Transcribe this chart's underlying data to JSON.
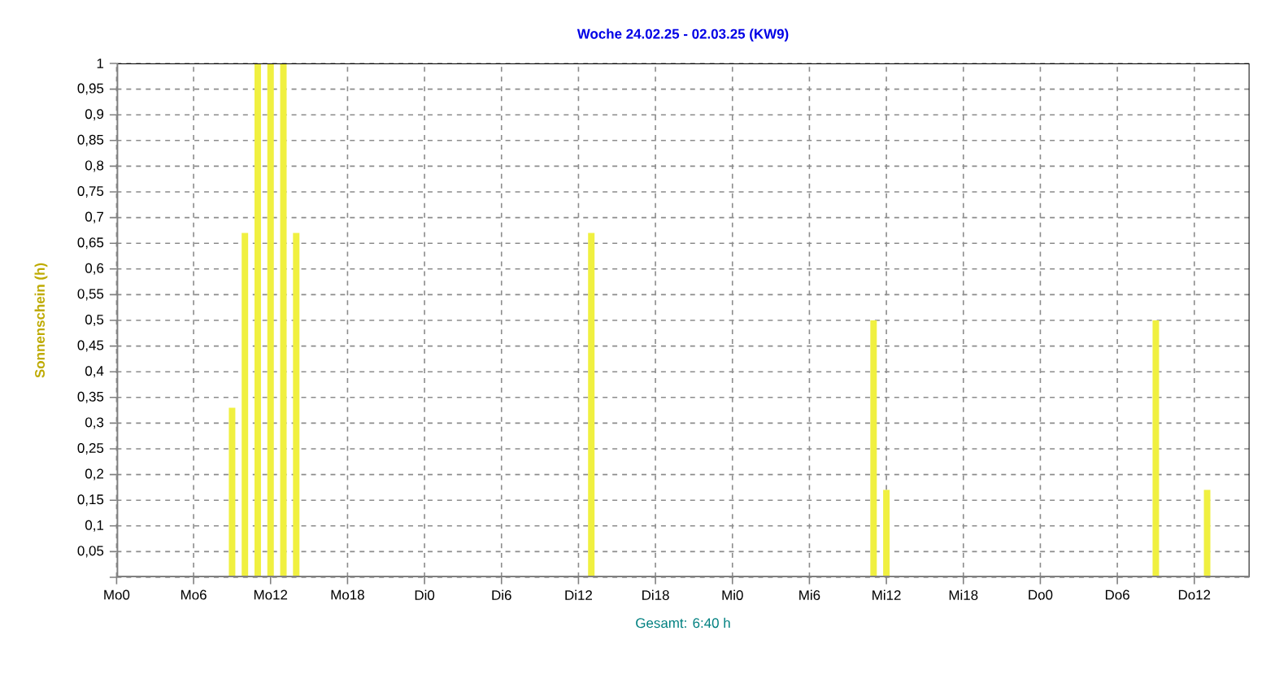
{
  "chart_data": {
    "type": "bar",
    "title": "Woche 24.02.25 - 02.03.25 (KW9)",
    "ylabel": "Sonnenschein  (h)",
    "annotations": [
      "Gesamt: 6:40 h"
    ],
    "categories": [
      "Mo0",
      null,
      null,
      null,
      null,
      null,
      "Mo6",
      null,
      null,
      null,
      null,
      null,
      "Mo12",
      null,
      null,
      null,
      null,
      null,
      "Mo18",
      null,
      null,
      null,
      null,
      null,
      "Di0",
      null,
      null,
      null,
      null,
      null,
      "Di6",
      null,
      null,
      null,
      null,
      null,
      "Di12",
      null,
      null,
      null,
      null,
      null,
      "Di18",
      null,
      null,
      null,
      null,
      null,
      "Mi0",
      null,
      null,
      null,
      null,
      null,
      "Mi6",
      null,
      null,
      null,
      null,
      null,
      "Mi12",
      null,
      null,
      null,
      null,
      null,
      "Mi18",
      null,
      null,
      null,
      null,
      null,
      "Do0",
      null,
      null,
      null,
      null,
      null,
      "Do6",
      null,
      null,
      null,
      null,
      null,
      "Do12",
      null,
      null,
      null,
      null
    ],
    "values": [
      null,
      null,
      null,
      null,
      null,
      null,
      null,
      null,
      null,
      0.33,
      0.67,
      1,
      1,
      1,
      0.67,
      null,
      null,
      null,
      null,
      null,
      null,
      null,
      null,
      null,
      null,
      null,
      null,
      null,
      null,
      null,
      null,
      null,
      null,
      null,
      null,
      null,
      null,
      0.67,
      null,
      null,
      null,
      null,
      null,
      null,
      null,
      null,
      null,
      null,
      null,
      null,
      null,
      null,
      null,
      null,
      null,
      null,
      null,
      null,
      null,
      0.5,
      0.17,
      null,
      null,
      null,
      null,
      null,
      null,
      null,
      null,
      null,
      null,
      null,
      null,
      null,
      null,
      null,
      null,
      null,
      null,
      null,
      null,
      0.5,
      null,
      null,
      null,
      0.17,
      null,
      null,
      null
    ],
    "color": "#f0f040",
    "ylim": [
      0,
      1
    ],
    "yticks": [
      {
        "value": 0,
        "label": null
      },
      {
        "value": 0.05,
        "label": "0,05"
      },
      {
        "value": 0.1,
        "label": "0,1"
      },
      {
        "value": 0.15,
        "label": "0,15"
      },
      {
        "value": 0.2,
        "label": "0,2"
      },
      {
        "value": 0.25,
        "label": "0,25"
      },
      {
        "value": 0.3,
        "label": "0,3"
      },
      {
        "value": 0.35,
        "label": "0,35"
      },
      {
        "value": 0.4,
        "label": "0,4"
      },
      {
        "value": 0.45,
        "label": "0,45"
      },
      {
        "value": 0.5,
        "label": "0,5"
      },
      {
        "value": 0.55,
        "label": "0,55"
      },
      {
        "value": 0.6,
        "label": "0,6"
      },
      {
        "value": 0.65,
        "label": "0,65"
      },
      {
        "value": 0.7,
        "label": "0,7"
      },
      {
        "value": 0.75,
        "label": "0,75"
      },
      {
        "value": 0.8,
        "label": "0,8"
      },
      {
        "value": 0.85,
        "label": "0,85"
      },
      {
        "value": 0.9,
        "label": "0,9"
      },
      {
        "value": 0.95,
        "label": "0,95"
      },
      {
        "value": 1,
        "label": "1"
      }
    ],
    "grid": true
  }
}
